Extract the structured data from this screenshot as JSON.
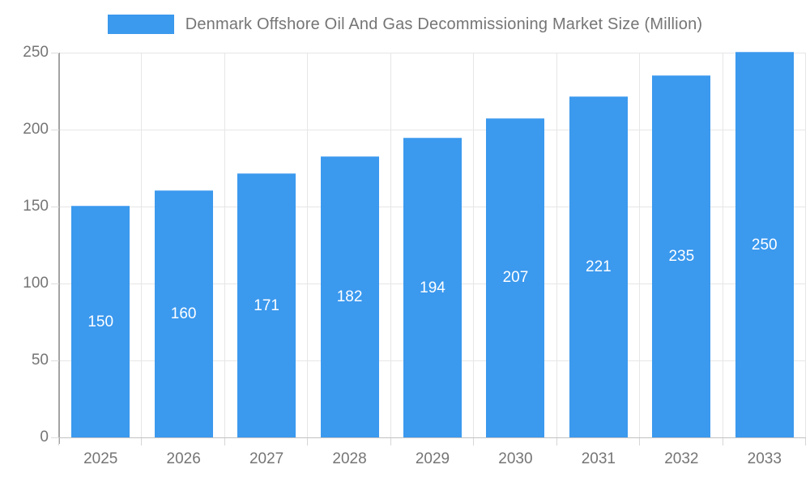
{
  "legend": {
    "title": "Denmark Offshore Oil And Gas Decommissioning Market Size (Million)"
  },
  "chart_data": {
    "type": "bar",
    "title": "Denmark Offshore Oil And Gas Decommissioning Market Size (Million)",
    "categories": [
      "2025",
      "2026",
      "2027",
      "2028",
      "2029",
      "2030",
      "2031",
      "2032",
      "2033"
    ],
    "values": [
      150,
      160,
      171,
      182,
      194,
      207,
      221,
      235,
      250
    ],
    "xlabel": "",
    "ylabel": "",
    "ylim": [
      0,
      250
    ],
    "yticks": [
      0,
      50,
      100,
      150,
      200,
      250
    ],
    "grid": true,
    "legend_position": "top",
    "bar_labels_inside": true
  },
  "colors": {
    "bar": "#3B99EE",
    "bar_label": "#ffffff",
    "axis_text": "#757575",
    "gridline": "#e6e6e6",
    "y_axis_line": "#a3a3a3",
    "x_axis_line": "#c2c2c2",
    "background": "#ffffff"
  }
}
